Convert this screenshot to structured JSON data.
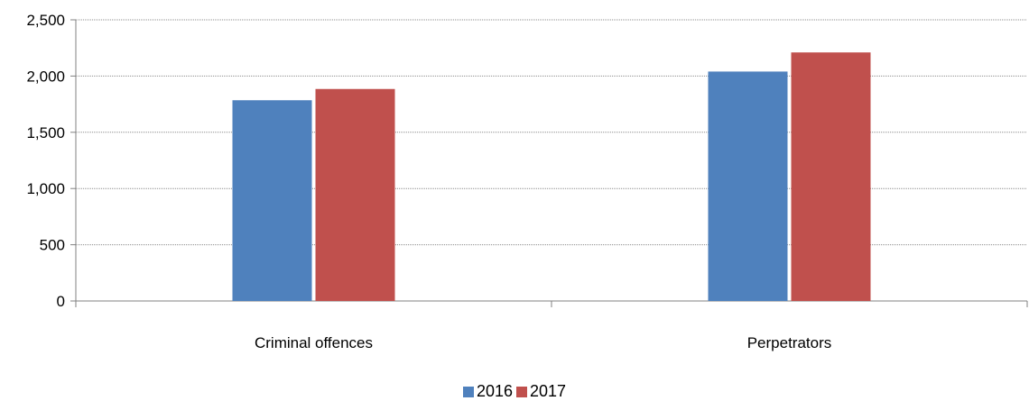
{
  "chart_data": {
    "type": "bar",
    "categories": [
      "Criminal offences",
      "Perpetrators"
    ],
    "series": [
      {
        "name": "2016",
        "values": [
          1785,
          2040
        ],
        "color": "#4F81BD"
      },
      {
        "name": "2017",
        "values": [
          1885,
          2210
        ],
        "color": "#C0504D"
      }
    ],
    "ylim": [
      0,
      2500
    ],
    "yticks": [
      0,
      500,
      1000,
      1500,
      2000,
      2500
    ],
    "ytick_labels": [
      "0",
      "500",
      "1,000",
      "1,500",
      "2,000",
      "2,500"
    ],
    "grid": true,
    "legend_position": "bottom"
  }
}
